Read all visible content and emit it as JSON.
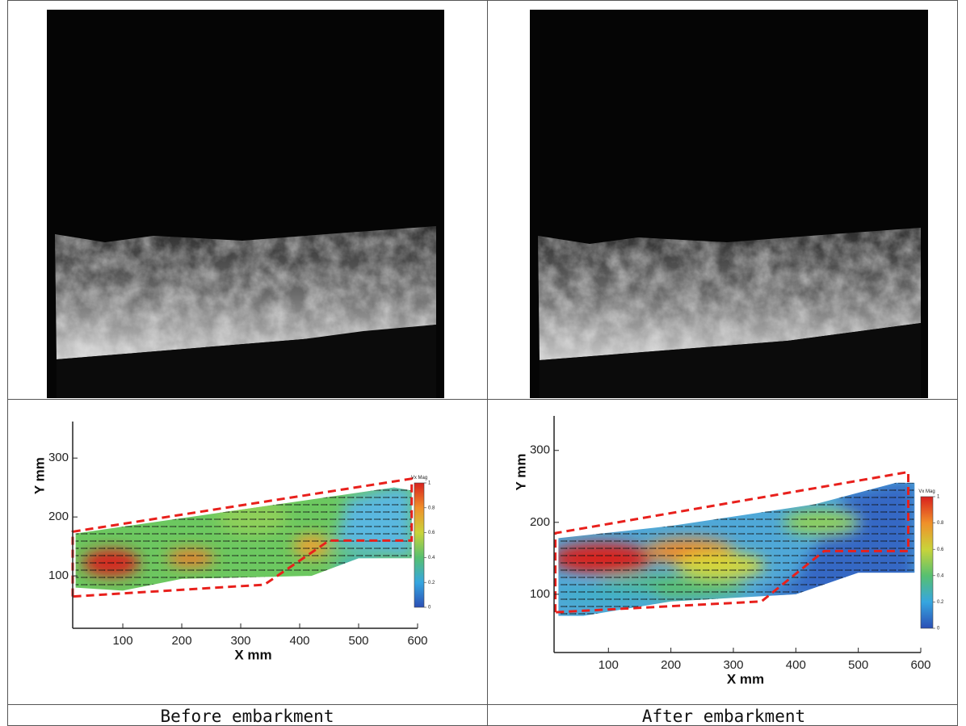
{
  "panels": [
    {
      "caption": "Before embarkment",
      "plot": {
        "x_label": "X mm",
        "y_label": "Y mm",
        "xlim": [
          15,
          600
        ],
        "ylim": [
          11,
          362
        ],
        "xticks": [
          100,
          200,
          300,
          400,
          500,
          600
        ],
        "yticks": [
          100,
          200,
          300
        ],
        "colorbar_label": "Vx Mag",
        "colorbar_ticks": [
          0,
          0.2,
          0.4,
          0.6,
          0.8,
          1
        ]
      }
    },
    {
      "caption": "After embarkment",
      "plot": {
        "x_label": "X mm",
        "y_label": "Y mm",
        "xlim": [
          13,
          600
        ],
        "ylim": [
          19,
          348
        ],
        "xticks": [
          100,
          200,
          300,
          400,
          500,
          600
        ],
        "yticks": [
          100,
          200,
          300
        ],
        "colorbar_label": "Vx Mag",
        "colorbar_ticks": [
          0,
          0.2,
          0.4,
          0.6,
          0.8,
          1
        ]
      }
    }
  ]
}
